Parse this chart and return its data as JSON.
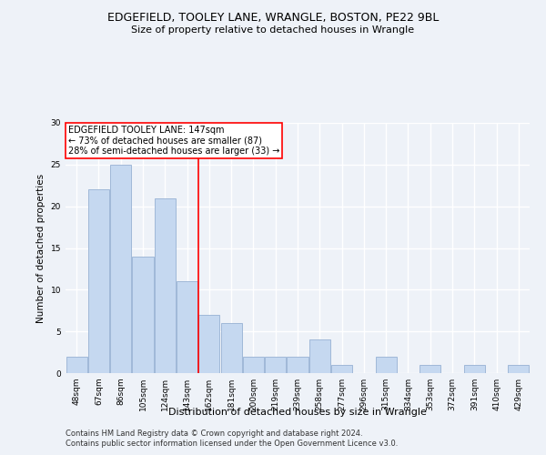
{
  "title1": "EDGEFIELD, TOOLEY LANE, WRANGLE, BOSTON, PE22 9BL",
  "title2": "Size of property relative to detached houses in Wrangle",
  "xlabel": "Distribution of detached houses by size in Wrangle",
  "ylabel": "Number of detached properties",
  "categories": [
    "48sqm",
    "67sqm",
    "86sqm",
    "105sqm",
    "124sqm",
    "143sqm",
    "162sqm",
    "181sqm",
    "200sqm",
    "219sqm",
    "239sqm",
    "258sqm",
    "277sqm",
    "296sqm",
    "315sqm",
    "334sqm",
    "353sqm",
    "372sqm",
    "391sqm",
    "410sqm",
    "429sqm"
  ],
  "values": [
    2,
    22,
    25,
    14,
    21,
    11,
    7,
    6,
    2,
    2,
    2,
    4,
    1,
    0,
    2,
    0,
    1,
    0,
    1,
    0,
    1
  ],
  "bar_color": "#c5d8f0",
  "bar_edge_color": "#a0b8d8",
  "ref_line_x": 5.5,
  "annotation_text": "EDGEFIELD TOOLEY LANE: 147sqm\n← 73% of detached houses are smaller (87)\n28% of semi-detached houses are larger (33) →",
  "annotation_box_color": "white",
  "annotation_box_edge_color": "red",
  "ref_line_color": "red",
  "ylim": [
    0,
    30
  ],
  "yticks": [
    0,
    5,
    10,
    15,
    20,
    25,
    30
  ],
  "footer1": "Contains HM Land Registry data © Crown copyright and database right 2024.",
  "footer2": "Contains public sector information licensed under the Open Government Licence v3.0.",
  "background_color": "#eef2f8",
  "plot_background_color": "#eef2f8"
}
